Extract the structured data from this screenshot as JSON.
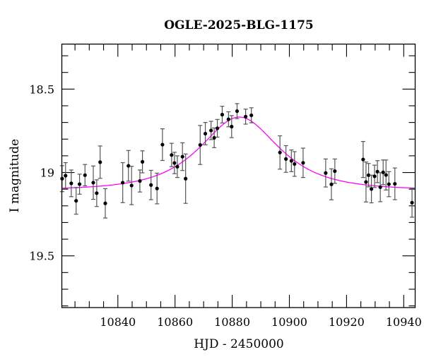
{
  "chart_data": {
    "type": "scatter",
    "title": "OGLE-2025-BLG-1175",
    "xlabel": "HJD - 2450000",
    "ylabel": "I magnitude",
    "xlim": [
      10820.4,
      10944.0
    ],
    "ylim": [
      19.81,
      18.23
    ],
    "y_inverted": true,
    "x_ticks_major": [
      10840,
      10860,
      10880,
      10900,
      10920,
      10940
    ],
    "x_tick_labels": [
      "10840",
      "10860",
      "10880",
      "10900",
      "10920",
      "10940"
    ],
    "x_minor_step": 5,
    "y_ticks_major": [
      18.5,
      19,
      19.5
    ],
    "y_tick_labels": [
      "18.5",
      "19",
      "19.5"
    ],
    "y_minor_step": 0.1,
    "grid": false,
    "colors": {
      "points": "#000000",
      "errorbars": "#555555",
      "model": "#ff00ff"
    },
    "model": {
      "type": "point-lens",
      "t0": 10882.5,
      "tE": 18.3,
      "u0": 0.83,
      "baseline": 19.105
    },
    "points": [
      {
        "x": 10820.5,
        "y": 19.037,
        "err": 0.078
      },
      {
        "x": 10821.7,
        "y": 19.019,
        "err": 0.078
      },
      {
        "x": 10823.7,
        "y": 19.065,
        "err": 0.08
      },
      {
        "x": 10825.4,
        "y": 19.17,
        "err": 0.08
      },
      {
        "x": 10826.6,
        "y": 19.07,
        "err": 0.06
      },
      {
        "x": 10828.5,
        "y": 19.016,
        "err": 0.064
      },
      {
        "x": 10831.4,
        "y": 19.061,
        "err": 0.1
      },
      {
        "x": 10832.6,
        "y": 19.124,
        "err": 0.08
      },
      {
        "x": 10833.8,
        "y": 18.938,
        "err": 0.097
      },
      {
        "x": 10835.6,
        "y": 19.185,
        "err": 0.088
      },
      {
        "x": 10841.7,
        "y": 19.061,
        "err": 0.12
      },
      {
        "x": 10843.7,
        "y": 18.96,
        "err": 0.092
      },
      {
        "x": 10844.8,
        "y": 19.078,
        "err": 0.115
      },
      {
        "x": 10847.7,
        "y": 19.051,
        "err": 0.066
      },
      {
        "x": 10848.6,
        "y": 18.936,
        "err": 0.066
      },
      {
        "x": 10851.6,
        "y": 19.075,
        "err": 0.088
      },
      {
        "x": 10853.7,
        "y": 19.096,
        "err": 0.092
      },
      {
        "x": 10855.6,
        "y": 18.833,
        "err": 0.095
      },
      {
        "x": 10858.8,
        "y": 18.895,
        "err": 0.07
      },
      {
        "x": 10859.8,
        "y": 18.943,
        "err": 0.064
      },
      {
        "x": 10860.8,
        "y": 18.965,
        "err": 0.065
      },
      {
        "x": 10862.6,
        "y": 18.905,
        "err": 0.083
      },
      {
        "x": 10863.7,
        "y": 19.037,
        "err": 0.148
      },
      {
        "x": 10868.8,
        "y": 18.835,
        "err": 0.117
      },
      {
        "x": 10870.6,
        "y": 18.767,
        "err": 0.067
      },
      {
        "x": 10872.6,
        "y": 18.748,
        "err": 0.055
      },
      {
        "x": 10873.7,
        "y": 18.792,
        "err": 0.059
      },
      {
        "x": 10874.8,
        "y": 18.735,
        "err": 0.053
      },
      {
        "x": 10876.5,
        "y": 18.653,
        "err": 0.05
      },
      {
        "x": 10878.7,
        "y": 18.681,
        "err": 0.045
      },
      {
        "x": 10879.8,
        "y": 18.725,
        "err": 0.066
      },
      {
        "x": 10881.7,
        "y": 18.632,
        "err": 0.045
      },
      {
        "x": 10884.7,
        "y": 18.665,
        "err": 0.045
      },
      {
        "x": 10886.7,
        "y": 18.657,
        "err": 0.045
      },
      {
        "x": 10896.7,
        "y": 18.88,
        "err": 0.1
      },
      {
        "x": 10898.8,
        "y": 18.919,
        "err": 0.08
      },
      {
        "x": 10900.7,
        "y": 18.93,
        "err": 0.065
      },
      {
        "x": 10901.8,
        "y": 18.949,
        "err": 0.074
      },
      {
        "x": 10904.8,
        "y": 18.942,
        "err": 0.088
      },
      {
        "x": 10912.7,
        "y": 19.003,
        "err": 0.084
      },
      {
        "x": 10914.7,
        "y": 19.071,
        "err": 0.093
      },
      {
        "x": 10915.9,
        "y": 18.992,
        "err": 0.073
      },
      {
        "x": 10925.8,
        "y": 18.922,
        "err": 0.108
      },
      {
        "x": 10926.8,
        "y": 19.057,
        "err": 0.12
      },
      {
        "x": 10927.7,
        "y": 19.016,
        "err": 0.07
      },
      {
        "x": 10928.7,
        "y": 19.099,
        "err": 0.083
      },
      {
        "x": 10929.8,
        "y": 19.023,
        "err": 0.067
      },
      {
        "x": 10930.8,
        "y": 18.995,
        "err": 0.066
      },
      {
        "x": 10931.8,
        "y": 19.088,
        "err": 0.087
      },
      {
        "x": 10932.8,
        "y": 18.999,
        "err": 0.074
      },
      {
        "x": 10933.8,
        "y": 19.015,
        "err": 0.09
      },
      {
        "x": 10934.8,
        "y": 19.07,
        "err": 0.075
      },
      {
        "x": 10936.9,
        "y": 19.068,
        "err": 0.095
      },
      {
        "x": 10942.9,
        "y": 19.181,
        "err": 0.087
      }
    ]
  }
}
